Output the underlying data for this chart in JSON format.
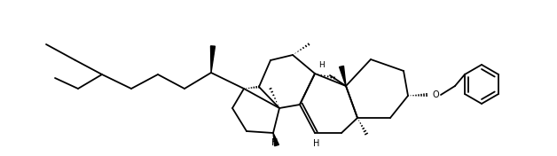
{
  "bg_color": "#ffffff",
  "line_color": "#000000",
  "line_width": 1.3,
  "fig_width": 6.28,
  "fig_height": 1.76,
  "dpi": 100,
  "xlim": [
    0,
    628
  ],
  "ylim": [
    0,
    176
  ]
}
